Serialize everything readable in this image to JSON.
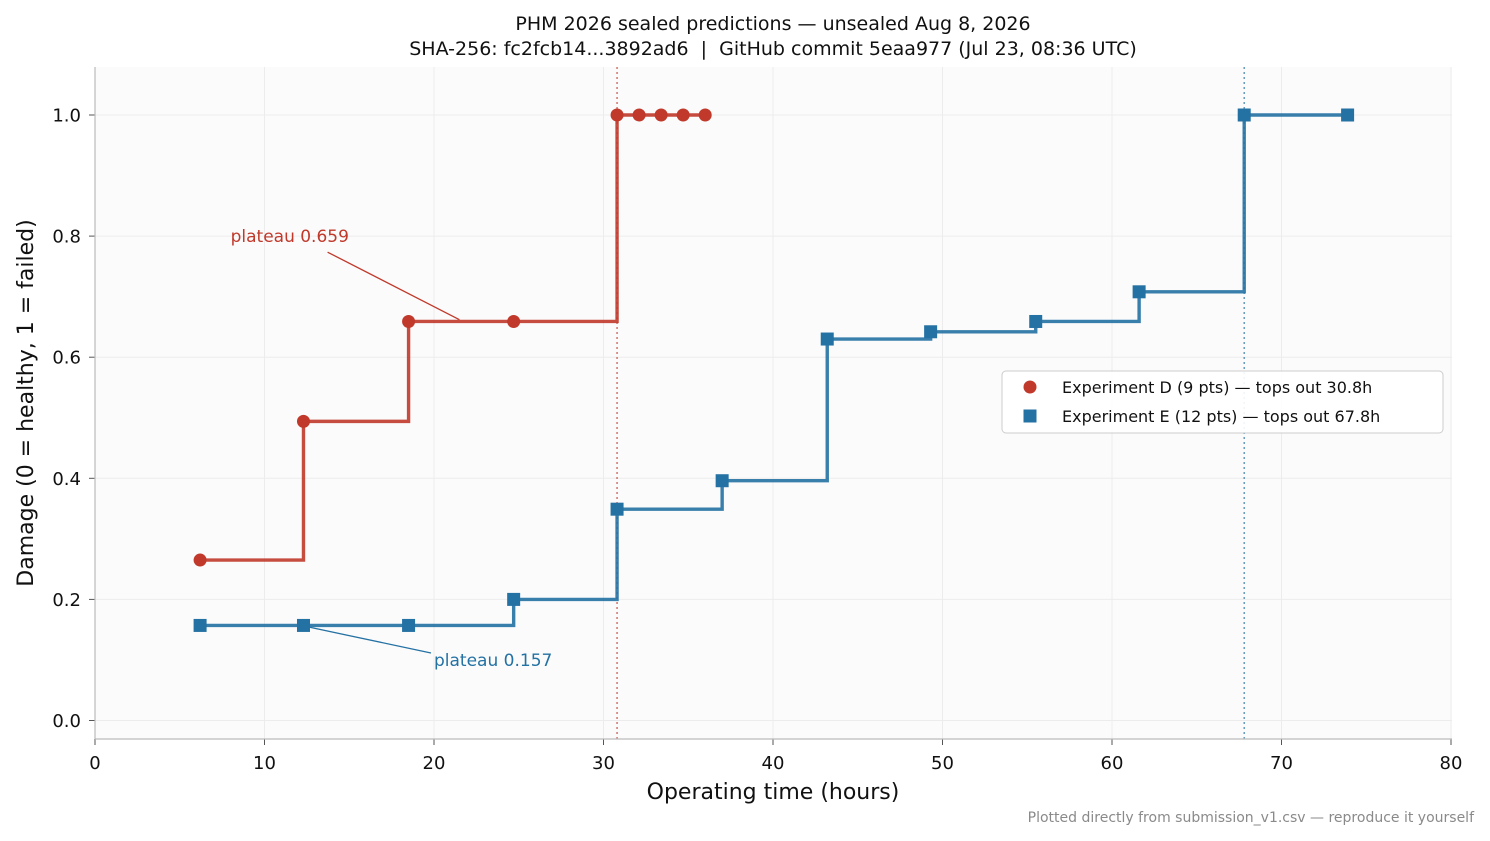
{
  "chart_data": {
    "type": "line",
    "title": "PHM 2026 sealed predictions — unsealed Aug 8, 2026",
    "subtitle": "SHA-256: fc2fcb14...3892ad6  |  GitHub commit 5eaa977 (Jul 23, 08:36 UTC)",
    "xlabel": "Operating time (hours)",
    "ylabel": "Damage (0 = healthy, 1 = failed)",
    "xlim": [
      0,
      80
    ],
    "ylim": [
      -0.03,
      1.08
    ],
    "xticks": [
      "0",
      "10",
      "20",
      "30",
      "40",
      "50",
      "60",
      "70",
      "80"
    ],
    "yticks": [
      "0.0",
      "0.2",
      "0.4",
      "0.6",
      "0.8",
      "1.0"
    ],
    "grid": true,
    "legend_position": "center-right",
    "series": [
      {
        "name": "Experiment D (9 pts) — tops out 30.8h",
        "color": "#c0392b",
        "marker": "circle",
        "step": "post",
        "x": [
          6.2,
          12.3,
          18.5,
          24.7,
          30.8,
          32.1,
          33.4,
          34.7,
          36.0
        ],
        "y": [
          0.265,
          0.494,
          0.659,
          0.659,
          1.0,
          1.0,
          1.0,
          1.0,
          1.0
        ],
        "vline_x": 30.8
      },
      {
        "name": "Experiment E (12 pts) — tops out 67.8h",
        "color": "#2471a3",
        "marker": "square",
        "step": "post",
        "x": [
          6.2,
          12.3,
          18.5,
          24.7,
          30.8,
          37.0,
          43.2,
          49.3,
          55.5,
          61.6,
          67.8,
          73.9
        ],
        "y": [
          0.157,
          0.157,
          0.157,
          0.2,
          0.349,
          0.396,
          0.63,
          0.642,
          0.659,
          0.708,
          1.0,
          1.0
        ],
        "vline_x": 67.8
      }
    ],
    "annotations": [
      {
        "text": "plateau 0.659",
        "color": "#c0392b",
        "text_x": 8.0,
        "text_y": 0.79,
        "target_x": 21.5,
        "target_y": 0.662
      },
      {
        "text": "plateau 0.157",
        "color": "#2471a3",
        "text_x": 20.0,
        "text_y": 0.09,
        "target_x": 12.5,
        "target_y": 0.155
      }
    ]
  },
  "footer": "Plotted directly from submission_v1.csv — reproduce it yourself"
}
